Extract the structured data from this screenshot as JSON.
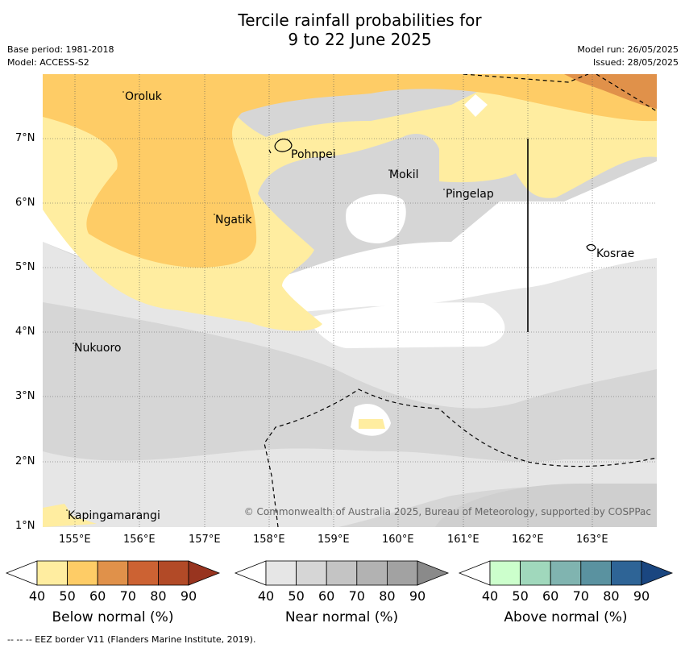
{
  "title": {
    "line1": "Tercile rainfall probabilities for",
    "line2": "9 to 22 June 2025"
  },
  "meta": {
    "base_period": "Base period: 1981-2018",
    "model": "Model: ACCESS-S2",
    "model_run": "Model run: 26/05/2025",
    "issued": "Issued: 28/05/2025"
  },
  "axes": {
    "lat_ticks": [
      "7°N",
      "6°N",
      "5°N",
      "4°N",
      "3°N",
      "2°N",
      "1°N"
    ],
    "lon_ticks": [
      "155°E",
      "156°E",
      "157°E",
      "158°E",
      "159°E",
      "160°E",
      "161°E",
      "162°E",
      "163°E"
    ]
  },
  "places": [
    {
      "name": "Oroluk"
    },
    {
      "name": "Pohnpei"
    },
    {
      "name": "Mokil"
    },
    {
      "name": "Pingelap"
    },
    {
      "name": "Ngatik"
    },
    {
      "name": "Kosrae"
    },
    {
      "name": "Nukuoro"
    },
    {
      "name": "Kapingamarangi"
    }
  ],
  "copyright": "© Commonwealth of Australia 2025, Bureau of Meteorology, supported by COSPPac",
  "colorbars": [
    {
      "title": "Below normal (%)",
      "ticks": [
        "40",
        "50",
        "60",
        "70",
        "80",
        "90"
      ],
      "colors": [
        "#ffffff",
        "#ffeda0",
        "#fecc66",
        "#e0914a",
        "#cc6233",
        "#b24a27",
        "#98341f"
      ]
    },
    {
      "title": "Near normal (%)",
      "ticks": [
        "40",
        "50",
        "60",
        "70",
        "80",
        "90"
      ],
      "colors": [
        "#ffffff",
        "#e6e6e6",
        "#d6d6d6",
        "#c4c4c4",
        "#b2b2b2",
        "#a2a2a2",
        "#8a8a8a"
      ]
    },
    {
      "title": "Above normal (%)",
      "ticks": [
        "40",
        "50",
        "60",
        "70",
        "80",
        "90"
      ],
      "colors": [
        "#ffffff",
        "#ccffcc",
        "#a0d8bc",
        "#80b4b0",
        "#5a92a0",
        "#2e6496",
        "#1a4680"
      ]
    }
  ],
  "footer": "--  --  -- EEZ border V11 (Flanders Marine Institute, 2019)."
}
